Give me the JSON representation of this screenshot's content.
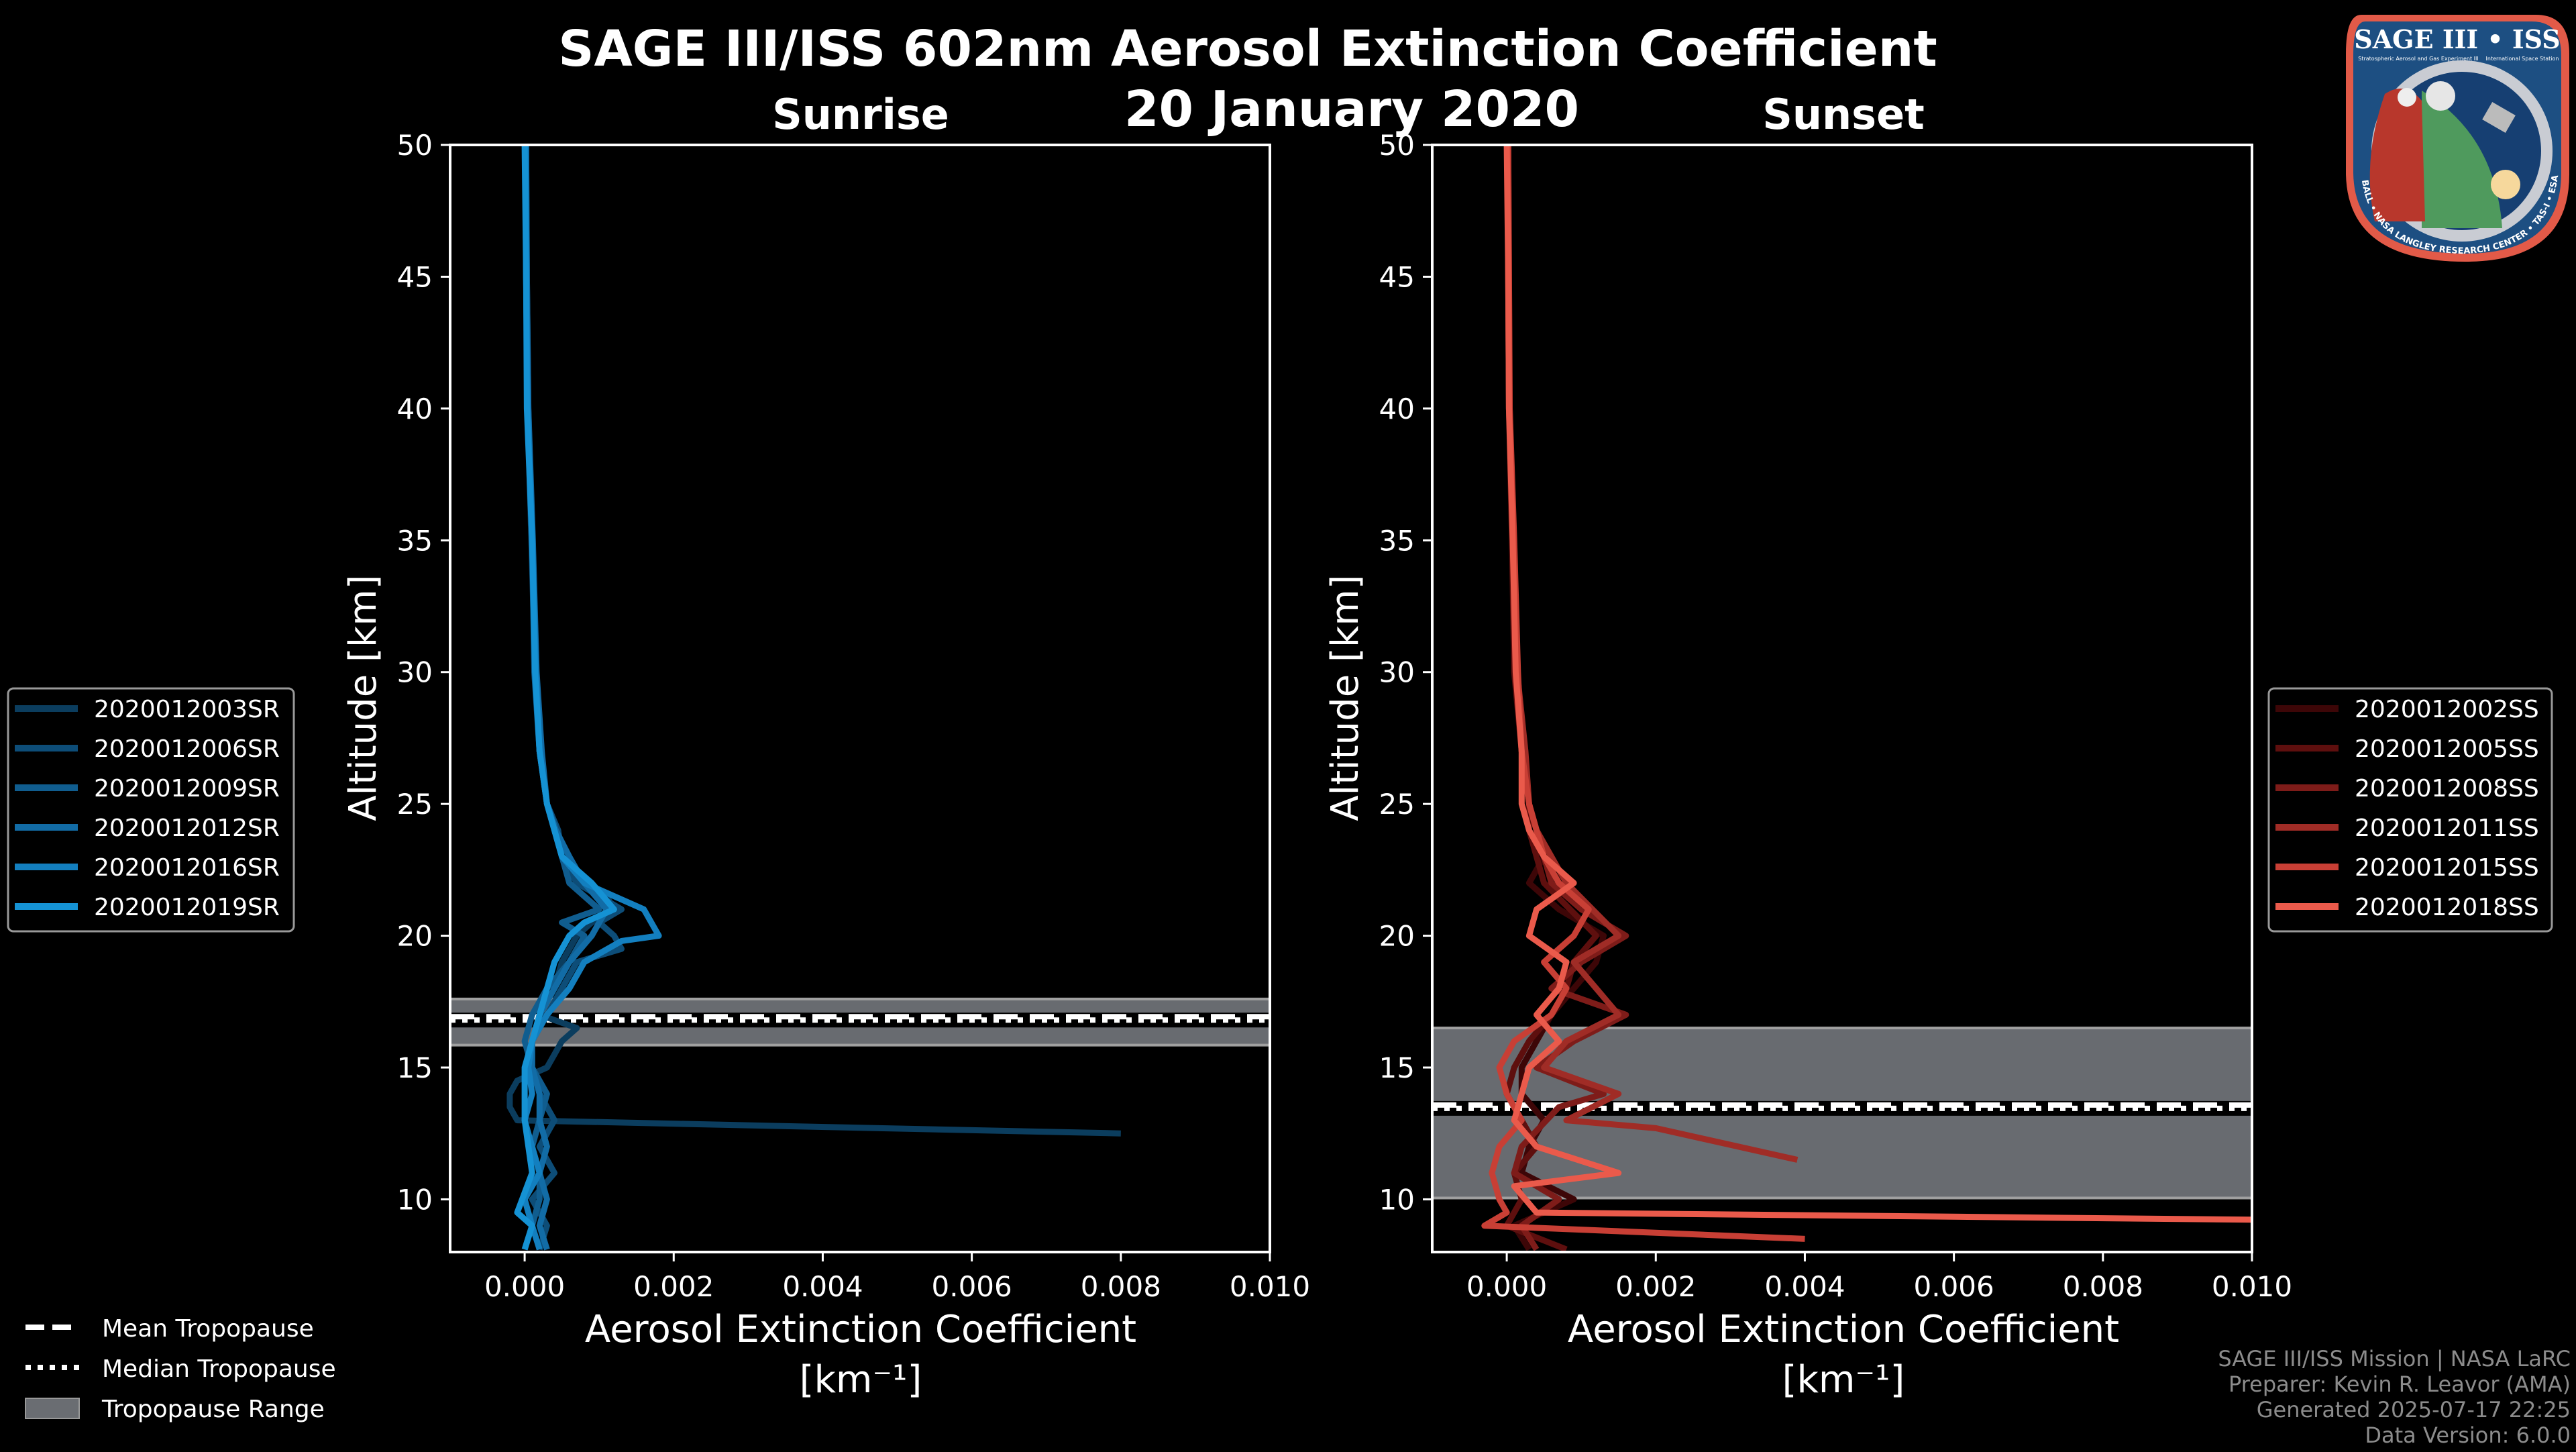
{
  "title": "SAGE III/ISS 602nm Aerosol Extinction Coefficient",
  "date": "20 January 2020",
  "footer": [
    "SAGE III/ISS Mission | NASA LaRC",
    "Preparer: Kevin R. Leavor (AMA)",
    "Generated 2025-07-17 22:25",
    "Data Version: 6.0.0"
  ],
  "logo": {
    "title": "SAGE III • ISS",
    "subtitle_left": "Stratospheric Aerosol and Gas Experiment III",
    "subtitle_right": "International Space Station",
    "ring": "BALL • NASA LANGLEY RESEARCH CENTER • TAS-I • ESA"
  },
  "bottom_legend": {
    "mean": "Mean Tropopause",
    "median": "Median Tropopause",
    "range": "Tropopause Range"
  },
  "chart_data": [
    {
      "type": "line",
      "title": "Sunrise",
      "xlabel": "Aerosol Extinction Coefficient",
      "xunit": "[km⁻¹]",
      "ylabel": "Altitude [km]",
      "xlim": [
        -0.001,
        0.01
      ],
      "ylim": [
        8,
        50
      ],
      "xticks": [
        0,
        0.002,
        0.004,
        0.006,
        0.008,
        0.01
      ],
      "xticklabels": [
        "0.000",
        "0.002",
        "0.004",
        "0.006",
        "0.008",
        "0.010"
      ],
      "yticks": [
        10,
        15,
        20,
        25,
        30,
        35,
        40,
        45,
        50
      ],
      "yticklabels": [
        "10",
        "15",
        "20",
        "25",
        "30",
        "35",
        "40",
        "45",
        "50"
      ],
      "legend_position": "left",
      "tropopause": {
        "mean": 16.8,
        "median": 16.8,
        "range": [
          15.85,
          17.6
        ]
      },
      "series": [
        {
          "name": "2020012003SR",
          "color": "#0b3d5e",
          "alt": [
            50,
            45,
            40,
            35,
            30,
            27,
            25,
            24,
            23,
            22,
            21.5,
            21,
            20.5,
            20,
            19,
            18,
            17,
            16.5,
            16,
            15.5,
            15,
            14.5,
            14,
            13.5,
            13,
            12.5
          ],
          "ext": [
            2e-05,
            3e-05,
            4e-05,
            9e-05,
            0.00014,
            0.0002,
            0.0003,
            0.0004,
            0.0005,
            0.0008,
            0.0011,
            0.0012,
            0.0009,
            0.0007,
            0.0005,
            0.0004,
            0.0002,
            0.0007,
            0.0005,
            0.0004,
            0.0003,
            -0.0001,
            -0.0002,
            -0.0002,
            -0.0001,
            0.008
          ]
        },
        {
          "name": "2020012006SR",
          "color": "#0d4d78",
          "alt": [
            50,
            45,
            40,
            35,
            30,
            27,
            25,
            24,
            23,
            22,
            21,
            20.5,
            20,
            19.5,
            19,
            18,
            17,
            16,
            15,
            14,
            13,
            12,
            11,
            10,
            9,
            8.1
          ],
          "ext": [
            1e-05,
            3e-05,
            5e-05,
            0.0001,
            0.00015,
            0.00022,
            0.0003,
            0.00045,
            0.0005,
            0.0007,
            0.0013,
            0.001,
            0.0012,
            0.0013,
            0.0007,
            0.0005,
            0.0003,
            0.0001,
            0.0001,
            0.0002,
            0.0004,
            0.0002,
            0.0004,
            0.0001,
            0.0003,
            0.0002
          ]
        },
        {
          "name": "2020012009SR",
          "color": "#105d8f",
          "alt": [
            50,
            45,
            40,
            35,
            30,
            27,
            25,
            24,
            23,
            22,
            21,
            20.5,
            20,
            19,
            18,
            17,
            16,
            15,
            14,
            13,
            12,
            11,
            10,
            9,
            8.1
          ],
          "ext": [
            2e-05,
            2e-05,
            4e-05,
            0.0001,
            0.00013,
            0.0002,
            0.0003,
            0.0004,
            0.0005,
            0.0006,
            0.001,
            0.0005,
            0.0008,
            0.0006,
            0.0003,
            0.0001,
            0.0,
            0.0001,
            0.0003,
            0.0002,
            0.0001,
            0.0002,
            0.0002,
            0.0001,
            0.0
          ]
        },
        {
          "name": "2020012012SR",
          "color": "#126ca6",
          "alt": [
            50,
            45,
            40,
            35,
            30,
            27,
            25,
            24,
            23,
            22,
            21,
            20,
            19,
            18,
            17,
            16,
            15,
            14,
            13,
            12,
            11,
            10,
            9,
            8.1
          ],
          "ext": [
            2e-05,
            3e-05,
            5e-05,
            0.00011,
            0.00016,
            0.00023,
            0.0003,
            0.00042,
            0.0006,
            0.0008,
            0.0011,
            0.0009,
            0.0006,
            0.0004,
            0.0002,
            0.0001,
            0.0001,
            0.0002,
            0.0002,
            0.0003,
            0.0002,
            0.0003,
            0.0002,
            0.0003
          ]
        },
        {
          "name": "2020012016SR",
          "color": "#137fbf",
          "alt": [
            50,
            45,
            40,
            35,
            30,
            27,
            25,
            24,
            23,
            22,
            21,
            20,
            19.8,
            19,
            18,
            17,
            16,
            15,
            14,
            13,
            12,
            11,
            10,
            9,
            8.1
          ],
          "ext": [
            1e-05,
            2e-05,
            4e-05,
            0.0001,
            0.00015,
            0.0002,
            0.0003,
            0.0004,
            0.0005,
            0.0008,
            0.0016,
            0.0018,
            0.0013,
            0.0008,
            0.0006,
            0.0003,
            0.0001,
            5e-05,
            0.0001,
            0.0,
            0.0001,
            0.0002,
            0.0,
            0.0001,
            0.0002
          ]
        },
        {
          "name": "2020012019SR",
          "color": "#1592d4",
          "alt": [
            50,
            45,
            40,
            35,
            30,
            27,
            25,
            24,
            23,
            22,
            21,
            20.5,
            20,
            19,
            18,
            17,
            16,
            15,
            13,
            11,
            9.5,
            9,
            8.1
          ],
          "ext": [
            0.0,
            2e-05,
            3e-05,
            0.0001,
            0.00014,
            0.0002,
            0.0003,
            0.0004,
            0.0005,
            0.0009,
            0.0012,
            0.0008,
            0.0006,
            0.0004,
            0.0003,
            0.0002,
            0.0001,
            0.0,
            0.0,
            0.0001,
            -0.0001,
            0.0001,
            0.0
          ]
        }
      ]
    },
    {
      "type": "line",
      "title": "Sunset",
      "xlabel": "Aerosol Extinction Coefficient",
      "xunit": "[km⁻¹]",
      "ylabel": "Altitude [km]",
      "xlim": [
        -0.001,
        0.01
      ],
      "ylim": [
        8,
        50
      ],
      "xticks": [
        0,
        0.002,
        0.004,
        0.006,
        0.008,
        0.01
      ],
      "xticklabels": [
        "0.000",
        "0.002",
        "0.004",
        "0.006",
        "0.008",
        "0.010"
      ],
      "yticks": [
        10,
        15,
        20,
        25,
        30,
        35,
        40,
        45,
        50
      ],
      "yticklabels": [
        "10",
        "15",
        "20",
        "25",
        "30",
        "35",
        "40",
        "45",
        "50"
      ],
      "legend_position": "right",
      "tropopause": {
        "mean": 13.45,
        "median": 13.45,
        "range": [
          10.05,
          16.5
        ]
      },
      "series": [
        {
          "name": "2020012002SS",
          "color": "#3d0607",
          "alt": [
            50,
            45,
            40,
            35,
            30,
            27,
            25,
            24,
            23,
            22,
            21,
            20,
            19,
            18,
            17,
            16,
            15,
            14,
            13,
            12,
            11,
            10,
            9,
            8.1
          ],
          "ext": [
            2e-05,
            3e-05,
            4e-05,
            8e-05,
            0.00012,
            0.0002,
            0.0003,
            0.0004,
            0.0005,
            0.0003,
            0.0007,
            0.0013,
            0.0012,
            0.0009,
            0.0006,
            0.0004,
            0.0002,
            0.0002,
            0.0005,
            0.0003,
            0.0002,
            0.0009,
            0.0001,
            0.0003
          ]
        },
        {
          "name": "2020012005SS",
          "color": "#5e0f0e",
          "alt": [
            50,
            45,
            40,
            35,
            30,
            27,
            25,
            24,
            23,
            22,
            20,
            19,
            18,
            17,
            16,
            15,
            14,
            13,
            12,
            11,
            10,
            9,
            8.1
          ],
          "ext": [
            1e-05,
            2e-05,
            3e-05,
            7e-05,
            0.0001,
            0.0002,
            0.0003,
            0.0003,
            0.0004,
            0.0005,
            0.0012,
            0.0009,
            0.0008,
            0.0006,
            0.0003,
            0.0001,
            0.0,
            0.0002,
            0.0004,
            0.0001,
            0.0002,
            0.0,
            0.0008
          ]
        },
        {
          "name": "2020012008SS",
          "color": "#7e1c19",
          "alt": [
            50,
            45,
            40,
            35,
            30,
            27,
            25,
            24,
            23,
            22,
            21,
            20,
            19,
            18,
            17,
            16,
            15,
            14,
            13.5,
            12,
            11,
            10,
            9,
            8.1
          ],
          "ext": [
            2e-05,
            2e-05,
            4e-05,
            8e-05,
            0.00013,
            0.0002,
            0.0003,
            0.0004,
            0.0005,
            0.0006,
            0.001,
            0.0016,
            0.001,
            0.0006,
            0.0016,
            0.0009,
            0.0004,
            0.0013,
            0.0007,
            0.0002,
            0.0001,
            0.0007,
            0.0002,
            0.0004
          ]
        },
        {
          "name": "2020012011SS",
          "color": "#a02c26",
          "alt": [
            50,
            45,
            40,
            35,
            30,
            27,
            25,
            24,
            23,
            22,
            20,
            19,
            18,
            17,
            16,
            15,
            14,
            13,
            12.7,
            11.5
          ],
          "ext": [
            1e-05,
            2e-05,
            3e-05,
            9e-05,
            0.00014,
            0.00025,
            0.0003,
            0.0004,
            0.0006,
            0.0008,
            0.0015,
            0.0009,
            0.0012,
            0.0015,
            0.0008,
            0.0005,
            0.0015,
            0.0008,
            0.002,
            0.0039
          ]
        },
        {
          "name": "2020012015SS",
          "color": "#c83f35",
          "alt": [
            50,
            45,
            40,
            35,
            30,
            27,
            25,
            24,
            23,
            22,
            21,
            20,
            19,
            18,
            17,
            16,
            15,
            14,
            13,
            12,
            11,
            10,
            9.5,
            9,
            8.5
          ],
          "ext": [
            2e-05,
            3e-05,
            4e-05,
            0.0001,
            0.00015,
            0.0002,
            0.0003,
            0.0004,
            0.0005,
            0.0007,
            0.0011,
            0.0009,
            0.0005,
            0.0008,
            0.0006,
            0.0001,
            -0.0001,
            0.0,
            0.0002,
            -0.0001,
            -0.0002,
            -0.0001,
            0.0,
            -0.0003,
            0.004
          ]
        },
        {
          "name": "2020012018SS",
          "color": "#ea5a4b",
          "alt": [
            50,
            45,
            40,
            35,
            30,
            27,
            25,
            24,
            23,
            22,
            21,
            20,
            19,
            18,
            17,
            16,
            15,
            14,
            13,
            12,
            11,
            10.5,
            9.5,
            9.2
          ],
          "ext": [
            0.0,
            2e-05,
            3e-05,
            8e-05,
            0.00012,
            0.0002,
            0.0002,
            0.0003,
            0.0005,
            0.0009,
            0.0004,
            0.0003,
            0.0008,
            0.0007,
            0.0004,
            0.0007,
            0.0003,
            0.0002,
            0.0001,
            0.0004,
            0.0015,
            0.0001,
            0.0004,
            0.011
          ]
        }
      ]
    }
  ]
}
